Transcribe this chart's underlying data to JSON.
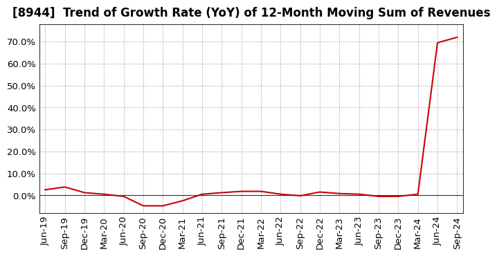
{
  "title": "[8944]  Trend of Growth Rate (YoY) of 12-Month Moving Sum of Revenues",
  "x_labels": [
    "Jun-19",
    "Sep-19",
    "Dec-19",
    "Mar-20",
    "Jun-20",
    "Sep-20",
    "Dec-20",
    "Mar-21",
    "Jun-21",
    "Sep-21",
    "Dec-21",
    "Mar-22",
    "Jun-22",
    "Sep-22",
    "Dec-22",
    "Mar-23",
    "Jun-23",
    "Sep-23",
    "Dec-23",
    "Mar-24",
    "Jun-24",
    "Sep-24"
  ],
  "y_values": [
    0.025,
    0.038,
    0.012,
    0.005,
    -0.005,
    -0.048,
    -0.048,
    -0.025,
    0.005,
    0.012,
    0.018,
    0.018,
    0.005,
    -0.002,
    0.015,
    0.008,
    0.005,
    -0.005,
    -0.005,
    0.005,
    0.695,
    0.72
  ],
  "line_color": "#cc0000",
  "background_color": "#ffffff",
  "plot_bg_color": "#ffffff",
  "grid_color": "#999999",
  "ylim": [
    -0.08,
    0.78
  ],
  "yticks": [
    0.0,
    0.1,
    0.2,
    0.3,
    0.4,
    0.5,
    0.6,
    0.7
  ],
  "title_fontsize": 12,
  "tick_fontsize": 9.5,
  "line_width": 1.5
}
